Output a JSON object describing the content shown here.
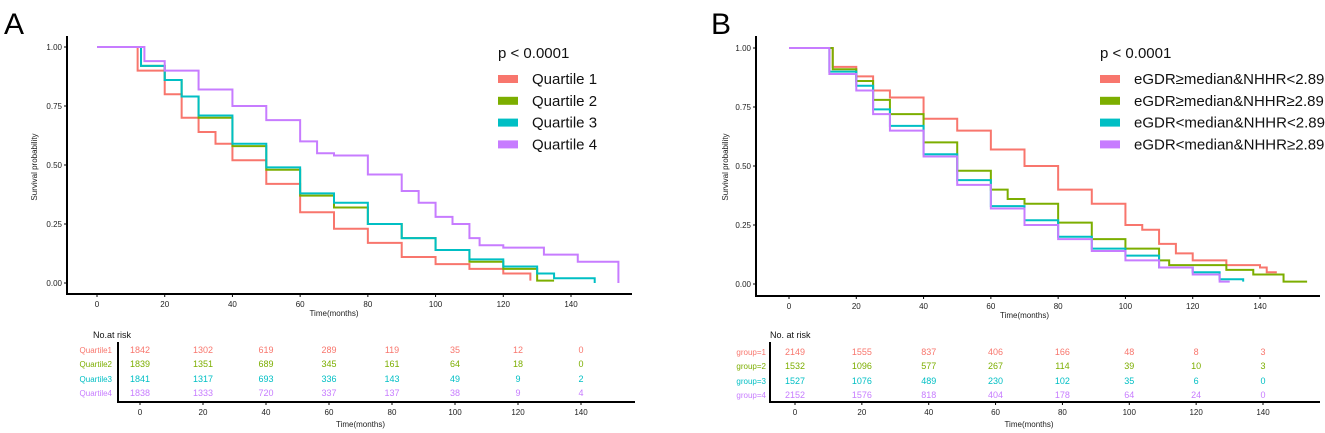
{
  "colors": {
    "s1": "#F8766D",
    "s2": "#7CAE00",
    "s3": "#00BFC4",
    "s4": "#C77CFF"
  },
  "chart_data": [
    {
      "type": "line",
      "panel_label": "A",
      "title": "",
      "xlabel": "Time(months)",
      "ylabel": "Survival probability",
      "xlim": [
        0,
        155
      ],
      "ylim": [
        0,
        1
      ],
      "xticks": [
        "0",
        "20",
        "40",
        "60",
        "80",
        "100",
        "120",
        "140"
      ],
      "yticks": [
        "0.00",
        "0.25",
        "0.50",
        "0.75",
        "1.00"
      ],
      "pvalue": "p < 0.0001",
      "legend_position": "top-right",
      "series": [
        {
          "name": "Quartile 1",
          "points": [
            [
              0,
              1
            ],
            [
              8,
              1
            ],
            [
              12,
              0.9
            ],
            [
              20,
              0.8
            ],
            [
              25,
              0.7
            ],
            [
              30,
              0.64
            ],
            [
              35,
              0.59
            ],
            [
              40,
              0.52
            ],
            [
              50,
              0.42
            ],
            [
              60,
              0.3
            ],
            [
              70,
              0.23
            ],
            [
              80,
              0.17
            ],
            [
              90,
              0.11
            ],
            [
              100,
              0.08
            ],
            [
              110,
              0.06
            ],
            [
              120,
              0.04
            ],
            [
              128,
              0.01
            ]
          ]
        },
        {
          "name": "Quartile 2",
          "points": [
            [
              0,
              1
            ],
            [
              9,
              1
            ],
            [
              13,
              0.92
            ],
            [
              20,
              0.86
            ],
            [
              25,
              0.79
            ],
            [
              30,
              0.7
            ],
            [
              40,
              0.58
            ],
            [
              50,
              0.48
            ],
            [
              60,
              0.37
            ],
            [
              70,
              0.32
            ],
            [
              80,
              0.25
            ],
            [
              90,
              0.19
            ],
            [
              100,
              0.14
            ],
            [
              110,
              0.09
            ],
            [
              120,
              0.06
            ],
            [
              130,
              0.01
            ],
            [
              135,
              0.01
            ]
          ]
        },
        {
          "name": "Quartile 3",
          "points": [
            [
              0,
              1
            ],
            [
              9,
              1
            ],
            [
              13,
              0.92
            ],
            [
              20,
              0.86
            ],
            [
              25,
              0.79
            ],
            [
              30,
              0.71
            ],
            [
              40,
              0.59
            ],
            [
              50,
              0.49
            ],
            [
              60,
              0.38
            ],
            [
              70,
              0.34
            ],
            [
              80,
              0.25
            ],
            [
              90,
              0.19
            ],
            [
              100,
              0.14
            ],
            [
              110,
              0.1
            ],
            [
              120,
              0.07
            ],
            [
              130,
              0.04
            ],
            [
              135,
              0.02
            ],
            [
              147,
              0.02
            ],
            [
              147,
              0
            ]
          ]
        },
        {
          "name": "Quartile 4",
          "points": [
            [
              0,
              1
            ],
            [
              10,
              1
            ],
            [
              14,
              0.94
            ],
            [
              20,
              0.9
            ],
            [
              30,
              0.82
            ],
            [
              40,
              0.75
            ],
            [
              50,
              0.69
            ],
            [
              60,
              0.6
            ],
            [
              65,
              0.55
            ],
            [
              70,
              0.54
            ],
            [
              80,
              0.46
            ],
            [
              90,
              0.39
            ],
            [
              95,
              0.34
            ],
            [
              100,
              0.28
            ],
            [
              105,
              0.25
            ],
            [
              110,
              0.19
            ],
            [
              113,
              0.16
            ],
            [
              120,
              0.15
            ],
            [
              132,
              0.12
            ],
            [
              142,
              0.09
            ],
            [
              154,
              0.09
            ],
            [
              154,
              0
            ]
          ]
        }
      ],
      "risk_table": {
        "title": "No.at risk",
        "xlabel": "Time(months)",
        "times": [
          "0",
          "20",
          "40",
          "60",
          "80",
          "100",
          "120",
          "140"
        ],
        "rows": [
          {
            "label": "Quartile1",
            "values": [
              "1842",
              "1302",
              "619",
              "289",
              "119",
              "35",
              "12",
              "0"
            ]
          },
          {
            "label": "Quartile2",
            "values": [
              "1839",
              "1351",
              "689",
              "345",
              "161",
              "64",
              "18",
              "0"
            ]
          },
          {
            "label": "Quartile3",
            "values": [
              "1841",
              "1317",
              "693",
              "336",
              "143",
              "49",
              "9",
              "2"
            ]
          },
          {
            "label": "Quartile4",
            "values": [
              "1838",
              "1333",
              "720",
              "337",
              "137",
              "38",
              "9",
              "4"
            ]
          }
        ]
      }
    },
    {
      "type": "line",
      "panel_label": "B",
      "title": "",
      "xlabel": "Time(months)",
      "ylabel": "Survival probability",
      "xlim": [
        0,
        155
      ],
      "ylim": [
        0,
        1
      ],
      "xticks": [
        "0",
        "20",
        "40",
        "60",
        "80",
        "100",
        "120",
        "140"
      ],
      "yticks": [
        "0.00",
        "0.25",
        "0.50",
        "0.75",
        "1.00"
      ],
      "pvalue": "p < 0.0001",
      "legend_position": "top-right",
      "series": [
        {
          "name": "eGDR≥median&NHHR<2.89",
          "points": [
            [
              0,
              1
            ],
            [
              10,
              1
            ],
            [
              13,
              0.92
            ],
            [
              20,
              0.88
            ],
            [
              25,
              0.82
            ],
            [
              30,
              0.79
            ],
            [
              40,
              0.7
            ],
            [
              50,
              0.65
            ],
            [
              60,
              0.57
            ],
            [
              70,
              0.5
            ],
            [
              80,
              0.4
            ],
            [
              90,
              0.34
            ],
            [
              100,
              0.25
            ],
            [
              105,
              0.23
            ],
            [
              110,
              0.17
            ],
            [
              115,
              0.13
            ],
            [
              120,
              0.1
            ],
            [
              130,
              0.08
            ],
            [
              140,
              0.07
            ],
            [
              142,
              0.05
            ],
            [
              145,
              0.05
            ]
          ]
        },
        {
          "name": "eGDR≥median&NHHR≥2.89",
          "points": [
            [
              0,
              1
            ],
            [
              10,
              1
            ],
            [
              13,
              0.91
            ],
            [
              20,
              0.86
            ],
            [
              25,
              0.78
            ],
            [
              30,
              0.72
            ],
            [
              40,
              0.6
            ],
            [
              50,
              0.48
            ],
            [
              60,
              0.4
            ],
            [
              65,
              0.36
            ],
            [
              70,
              0.34
            ],
            [
              80,
              0.26
            ],
            [
              90,
              0.19
            ],
            [
              100,
              0.15
            ],
            [
              110,
              0.1
            ],
            [
              113,
              0.08
            ],
            [
              120,
              0.08
            ],
            [
              130,
              0.06
            ],
            [
              138,
              0.04
            ],
            [
              147,
              0.04
            ],
            [
              147,
              0.01
            ],
            [
              154,
              0.01
            ]
          ]
        },
        {
          "name": "eGDR<median&NHHR<2.89",
          "points": [
            [
              0,
              1
            ],
            [
              9,
              1
            ],
            [
              12,
              0.9
            ],
            [
              20,
              0.84
            ],
            [
              25,
              0.74
            ],
            [
              30,
              0.67
            ],
            [
              40,
              0.55
            ],
            [
              50,
              0.44
            ],
            [
              60,
              0.33
            ],
            [
              70,
              0.27
            ],
            [
              80,
              0.2
            ],
            [
              90,
              0.15
            ],
            [
              100,
              0.12
            ],
            [
              110,
              0.07
            ],
            [
              120,
              0.05
            ],
            [
              128,
              0.02
            ],
            [
              135,
              0.01
            ]
          ]
        },
        {
          "name": "eGDR<median&NHHR≥2.89",
          "points": [
            [
              0,
              1
            ],
            [
              8,
              1
            ],
            [
              12,
              0.89
            ],
            [
              20,
              0.82
            ],
            [
              25,
              0.72
            ],
            [
              30,
              0.65
            ],
            [
              40,
              0.54
            ],
            [
              50,
              0.42
            ],
            [
              60,
              0.32
            ],
            [
              70,
              0.25
            ],
            [
              80,
              0.19
            ],
            [
              90,
              0.14
            ],
            [
              100,
              0.1
            ],
            [
              110,
              0.07
            ],
            [
              120,
              0.04
            ],
            [
              128,
              0.01
            ],
            [
              131,
              0.01
            ]
          ]
        }
      ],
      "risk_table": {
        "title": "No. at risk",
        "xlabel": "Time(months)",
        "times": [
          "0",
          "20",
          "40",
          "60",
          "80",
          "100",
          "120",
          "140"
        ],
        "rows": [
          {
            "label": "group=1",
            "values": [
              "2149",
              "1555",
              "837",
              "406",
              "166",
              "48",
              "8",
              "3"
            ]
          },
          {
            "label": "group=2",
            "values": [
              "1532",
              "1096",
              "577",
              "267",
              "114",
              "39",
              "10",
              "3"
            ]
          },
          {
            "label": "group=3",
            "values": [
              "1527",
              "1076",
              "489",
              "230",
              "102",
              "35",
              "6",
              "0"
            ]
          },
          {
            "label": "group=4",
            "values": [
              "2152",
              "1576",
              "818",
              "404",
              "178",
              "64",
              "24",
              "0"
            ]
          }
        ]
      }
    }
  ]
}
